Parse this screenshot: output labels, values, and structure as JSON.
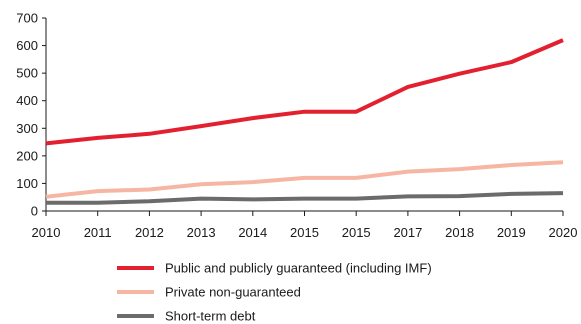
{
  "chart_data": {
    "type": "line",
    "title": "",
    "xlabel": "",
    "ylabel": "",
    "categories": [
      "2010",
      "2011",
      "2012",
      "2013",
      "2014",
      "2015",
      "2015",
      "2017",
      "2018",
      "2019",
      "2020"
    ],
    "ylim": [
      0,
      700
    ],
    "yticks": [
      0,
      100,
      200,
      300,
      400,
      500,
      600,
      700
    ],
    "grid": false,
    "legend_position": "bottom",
    "series": [
      {
        "name": "Public and publicly guaranteed (including IMF)",
        "color": "#e3202f",
        "values": [
          245,
          265,
          280,
          308,
          337,
          360,
          360,
          450,
          498,
          540,
          620
        ]
      },
      {
        "name": "Private non-guaranteed",
        "color": "#f7b6a3",
        "values": [
          52,
          72,
          78,
          97,
          105,
          120,
          120,
          143,
          152,
          167,
          177
        ]
      },
      {
        "name": "Short-term debt",
        "color": "#6b6b6b",
        "values": [
          30,
          30,
          35,
          45,
          42,
          45,
          45,
          53,
          54,
          62,
          65
        ]
      }
    ]
  }
}
